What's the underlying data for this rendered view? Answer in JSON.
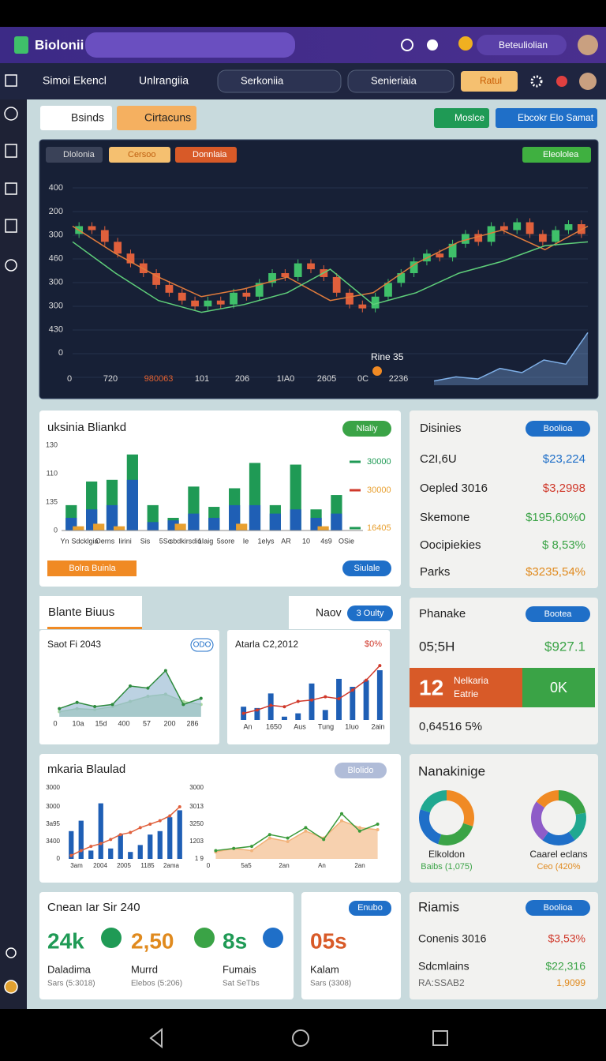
{
  "header": {
    "app_name": "Biolonii",
    "user_menu": "Beteuliolian"
  },
  "toolbar": {
    "menu_1": "Simoi Ekencl",
    "menu_2": "Unlrangiia",
    "search": "Serkoniia",
    "select": "Senieriaia",
    "button": "Ratul"
  },
  "actions": {
    "tab_1": "Bsinds",
    "tab_2": "Cirtacuns",
    "button_1": "Moslce",
    "button_2": "Ebcokr Elo Samat"
  },
  "market_chart": {
    "tags": [
      "Dlolonia",
      "Cersoo",
      "Donnlaia"
    ],
    "badge": "Eleololea",
    "y_labels": [
      "400",
      "200",
      "300",
      "460",
      "300",
      "300",
      "430",
      "0"
    ],
    "x_labels": [
      "0",
      "720",
      "980063",
      "101",
      "206",
      "1IA0",
      "2605",
      "0C",
      "2236"
    ],
    "annotation": "Rine 35",
    "ylim": [
      0,
      100
    ],
    "up_color": "#3fc06a",
    "down_color": "#e0603c",
    "candles": [
      [
        70,
        74
      ],
      [
        74,
        72
      ],
      [
        72,
        66
      ],
      [
        66,
        60
      ],
      [
        60,
        55
      ],
      [
        55,
        50
      ],
      [
        50,
        44
      ],
      [
        44,
        40
      ],
      [
        40,
        36
      ],
      [
        36,
        33
      ],
      [
        33,
        36
      ],
      [
        36,
        34
      ],
      [
        34,
        40
      ],
      [
        40,
        38
      ],
      [
        38,
        45
      ],
      [
        45,
        50
      ],
      [
        50,
        48
      ],
      [
        48,
        55
      ],
      [
        55,
        52
      ],
      [
        52,
        48
      ],
      [
        48,
        40
      ],
      [
        40,
        34
      ],
      [
        34,
        32
      ],
      [
        32,
        38
      ],
      [
        38,
        45
      ],
      [
        45,
        50
      ],
      [
        50,
        56
      ],
      [
        56,
        60
      ],
      [
        60,
        58
      ],
      [
        58,
        65
      ],
      [
        65,
        70
      ],
      [
        70,
        66
      ],
      [
        66,
        74
      ],
      [
        74,
        72
      ],
      [
        72,
        76
      ],
      [
        76,
        70
      ],
      [
        70,
        66
      ],
      [
        66,
        72
      ],
      [
        72,
        75
      ],
      [
        75,
        70
      ]
    ],
    "trend": {
      "color": "#e07b3c",
      "values": [
        74,
        60,
        48,
        38,
        42,
        48,
        36,
        40,
        55,
        66,
        72,
        62,
        74
      ]
    },
    "support": {
      "color": "#5fcf7a",
      "values": [
        66,
        50,
        36,
        30,
        34,
        40,
        52,
        34,
        40,
        50,
        56,
        64,
        66
      ]
    },
    "spark": {
      "color": "#7fb0e8",
      "ylim": [
        0,
        30
      ],
      "values": [
        2,
        4,
        3,
        8,
        6,
        12,
        10,
        25
      ]
    }
  },
  "sales_chart": {
    "title": "uksinia Bliankd",
    "badge": "Nlaliy",
    "y_labels": [
      "130",
      "110",
      "135",
      "0"
    ],
    "right_labels": [
      "30000",
      "30000",
      "16405"
    ],
    "x_labels": [
      "Yn",
      "Sdcklgia",
      "Oerns",
      "Iirini",
      "Sis",
      "5Sc",
      "sbdkirsdio",
      "1Iaig",
      "5sore",
      "Ie",
      "1elys",
      "AR",
      "10",
      "4s9",
      "OSie"
    ],
    "ylim": [
      0,
      100
    ],
    "series": [
      {
        "color": "#1f9a55",
        "values": [
          30,
          58,
          60,
          90,
          30,
          15,
          52,
          28,
          50,
          80,
          30,
          78,
          25,
          42
        ]
      },
      {
        "color": "#1f5fb5",
        "values": [
          15,
          25,
          30,
          60,
          10,
          12,
          20,
          15,
          30,
          30,
          20,
          25,
          15,
          20
        ]
      },
      {
        "color": "#e8a030",
        "values": [
          5,
          8,
          5,
          0,
          0,
          8,
          0,
          0,
          8,
          0,
          0,
          0,
          5,
          0
        ]
      }
    ],
    "button_left": "Bolra Buinla",
    "button_right": "Siulale"
  },
  "stats": {
    "title": "Disinies",
    "badge": "Boolioa",
    "rows": [
      {
        "label": "C2I,6U",
        "value": "$23,224",
        "color": "#1f6fc8"
      },
      {
        "label": "Oepled 3016",
        "value": "$3,2998",
        "color": "#d0392b"
      },
      {
        "label": "Skemone",
        "value": "$195,60%0",
        "color": "#3aa346"
      },
      {
        "label": "Oocipiekies",
        "value": "$ 8,53%",
        "color": "#3aa346"
      },
      {
        "label": "Parks",
        "value": "$3235,54%",
        "color": "#e08a1e"
      }
    ]
  },
  "tabs": {
    "tab_1": "Blante Biuus",
    "tab_2": "Naov",
    "badge": "3 Oulty"
  },
  "mini_area": {
    "title": "Saot Fi 2043",
    "badge": "ODO",
    "x_labels": [
      "0",
      "10a",
      "15d",
      "400",
      "57",
      "200",
      "286"
    ],
    "ylim": [
      0,
      60
    ],
    "line": {
      "color": "#2e8b3e",
      "fill": "#8fb4cf",
      "values": [
        8,
        14,
        10,
        12,
        30,
        28,
        45,
        12,
        18
      ]
    },
    "base": {
      "color": "#a8d8a0",
      "values": [
        5,
        8,
        7,
        10,
        15,
        20,
        22,
        15,
        12
      ]
    }
  },
  "mini_bar": {
    "title": "Atarla C2,2012",
    "value": "$0%",
    "x_labels": [
      "An",
      "1650",
      "Aus",
      "Tung",
      "1Iuo",
      "2ain"
    ],
    "ylim": [
      0,
      100
    ],
    "bars": {
      "color": "#1f5fb5",
      "values": [
        20,
        18,
        40,
        5,
        10,
        55,
        15,
        62,
        50,
        60,
        75
      ]
    },
    "line": {
      "color": "#d0392b",
      "values": [
        10,
        15,
        22,
        20,
        28,
        30,
        35,
        32,
        45,
        60,
        82
      ]
    }
  },
  "phanake": {
    "title": "Phanake",
    "badge": "Bootea",
    "row_label": "05;5H",
    "row_value": "$927.1",
    "tile_number": "12",
    "tile_line_1": "Nelkaria",
    "tile_line_2": "Eatrie",
    "tile_right": "0K",
    "footer": "0,64516 5%"
  },
  "trend_panel": {
    "title": "mkaria Blaulad",
    "badge": "Blolido",
    "left": {
      "y_labels": [
        "3000",
        "3000",
        "3a95",
        "3400",
        "0"
      ],
      "x_labels": [
        "3am",
        "2004",
        "2005",
        "1185",
        "2ama"
      ],
      "ylim": [
        0,
        100
      ],
      "bars": {
        "color": "#1f5fb5",
        "values": [
          40,
          55,
          12,
          80,
          15,
          35,
          10,
          20,
          35,
          40,
          60,
          70
        ]
      },
      "line": {
        "color": "#e0603c",
        "values": [
          5,
          12,
          18,
          22,
          28,
          35,
          38,
          45,
          50,
          55,
          62,
          75
        ]
      }
    },
    "right": {
      "y_labels": [
        "3000",
        "3013",
        "3250",
        "1203",
        "1 9"
      ],
      "x_labels": [
        "0",
        "5a5",
        "2an",
        "An",
        "2an"
      ],
      "ylim": [
        0,
        100
      ],
      "area": {
        "color": "#f2b27a",
        "values": [
          10,
          15,
          12,
          30,
          25,
          40,
          30,
          55,
          45,
          42
        ]
      },
      "line": {
        "color": "#3a9a3a",
        "values": [
          12,
          15,
          18,
          35,
          30,
          45,
          28,
          65,
          40,
          50
        ]
      }
    }
  },
  "donuts": {
    "title": "Nanakinige",
    "items": [
      {
        "label": "Elkoldon",
        "sub": "Baibs (1,075)",
        "sub_color": "#3aa346",
        "segments": [
          {
            "value": 30,
            "color": "#f08a24"
          },
          {
            "value": 25,
            "color": "#3aa346"
          },
          {
            "value": 25,
            "color": "#1f6fc8"
          },
          {
            "value": 20,
            "color": "#20a890"
          }
        ]
      },
      {
        "label": "Caarel eclans",
        "sub": "Ceo (420%",
        "sub_color": "#e08a1e",
        "segments": [
          {
            "value": 22,
            "color": "#3aa346"
          },
          {
            "value": 18,
            "color": "#20a890"
          },
          {
            "value": 20,
            "color": "#1f6fc8"
          },
          {
            "value": 25,
            "color": "#8e5cc8"
          },
          {
            "value": 15,
            "color": "#f08a24"
          }
        ]
      }
    ]
  },
  "summary": {
    "title": "Cnean Iar Sir 240",
    "metrics": [
      {
        "value": "24k",
        "color": "#1f9a55",
        "label": "Daladima",
        "sub": "Sars (5:3018)"
      },
      {
        "value": "2,50",
        "color": "#e08a1e",
        "label": "Murrd",
        "sub": "Elebos (5:206)"
      },
      {
        "value": "8s",
        "color": "#1f9a55",
        "label": "Fumais",
        "sub": "Sat SeTbs"
      }
    ]
  },
  "side_metric": {
    "badge": "Enubo",
    "value": "05s",
    "label": "Kalam",
    "sub": "Sars (3308)"
  },
  "riamis": {
    "title": "Riamis",
    "badge": "Boolioa",
    "rows": [
      {
        "label": "Conenis 3016",
        "value": "$3,53%",
        "color": "#d0392b"
      },
      {
        "label": "Sdcmlains",
        "value": "$22,316",
        "color": "#3aa346"
      },
      {
        "label": "RA:SSAB2",
        "value": "1,9099",
        "color": "#e08a1e"
      }
    ]
  }
}
